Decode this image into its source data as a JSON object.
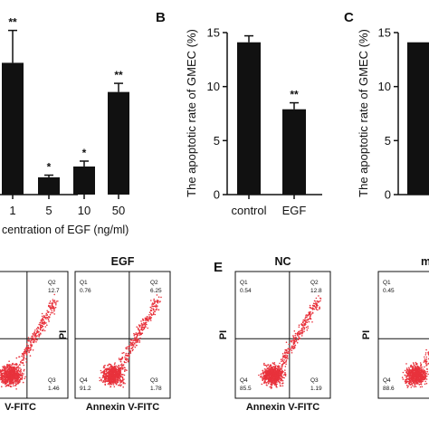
{
  "chart_data": [
    {
      "type": "bar",
      "panel_letter": "",
      "categories": [
        "1",
        "5",
        "10",
        "50"
      ],
      "values": [
        12.2,
        1.6,
        2.6,
        9.5
      ],
      "errors": [
        3.0,
        0.2,
        0.5,
        0.8
      ],
      "significance": [
        "**",
        "*",
        "*",
        "**"
      ],
      "xlabel": "centration of EGF (ng/ml)",
      "ylim": [
        0,
        15
      ]
    },
    {
      "type": "bar",
      "panel_letter": "B",
      "categories": [
        "control",
        "EGF"
      ],
      "values": [
        14.1,
        7.9
      ],
      "errors": [
        0.6,
        0.6
      ],
      "significance": [
        "",
        "**"
      ],
      "ylabel": "The apoptotic rate of GMEC (%)",
      "yticks": [
        "0",
        "5",
        "10",
        "15"
      ],
      "ylim": [
        0,
        15
      ]
    },
    {
      "type": "bar",
      "panel_letter": "C",
      "categories": [
        ""
      ],
      "values": [
        14.1
      ],
      "errors": [
        0
      ],
      "significance": [
        ""
      ],
      "ylabel": "The apoptotic rate of GMEC (%)",
      "yticks": [
        "0",
        "5",
        "10",
        "15"
      ],
      "ylim": [
        0,
        15
      ]
    }
  ],
  "flow_panels": {
    "panel_letter": "E",
    "xlabel": "Annexin V-FITC",
    "ylabel": "PI",
    "plots": [
      {
        "title": "",
        "q1": "",
        "q2": "12.7",
        "q3": "1.46",
        "q4": "",
        "xlabel": "V-FITC"
      },
      {
        "title": "EGF",
        "q1": "0.76",
        "q2": "6.25",
        "q3": "1.78",
        "q4": "91.2",
        "xlabel": "Annexin V-FITC"
      },
      {
        "title": "NC",
        "q1": "0.54",
        "q2": "12.8",
        "q3": "1.19",
        "q4": "85.5",
        "xlabel": "Annexin V-FITC"
      },
      {
        "title": "m",
        "q1": "0.45",
        "q2": "",
        "q3": "",
        "q4": "88.6",
        "xlabel": ""
      }
    ],
    "quadrant_names": [
      "Q1",
      "Q2",
      "Q3",
      "Q4"
    ]
  },
  "colors": {
    "bar": "#111111",
    "dots": "#e8323c",
    "axis": "#111111"
  }
}
